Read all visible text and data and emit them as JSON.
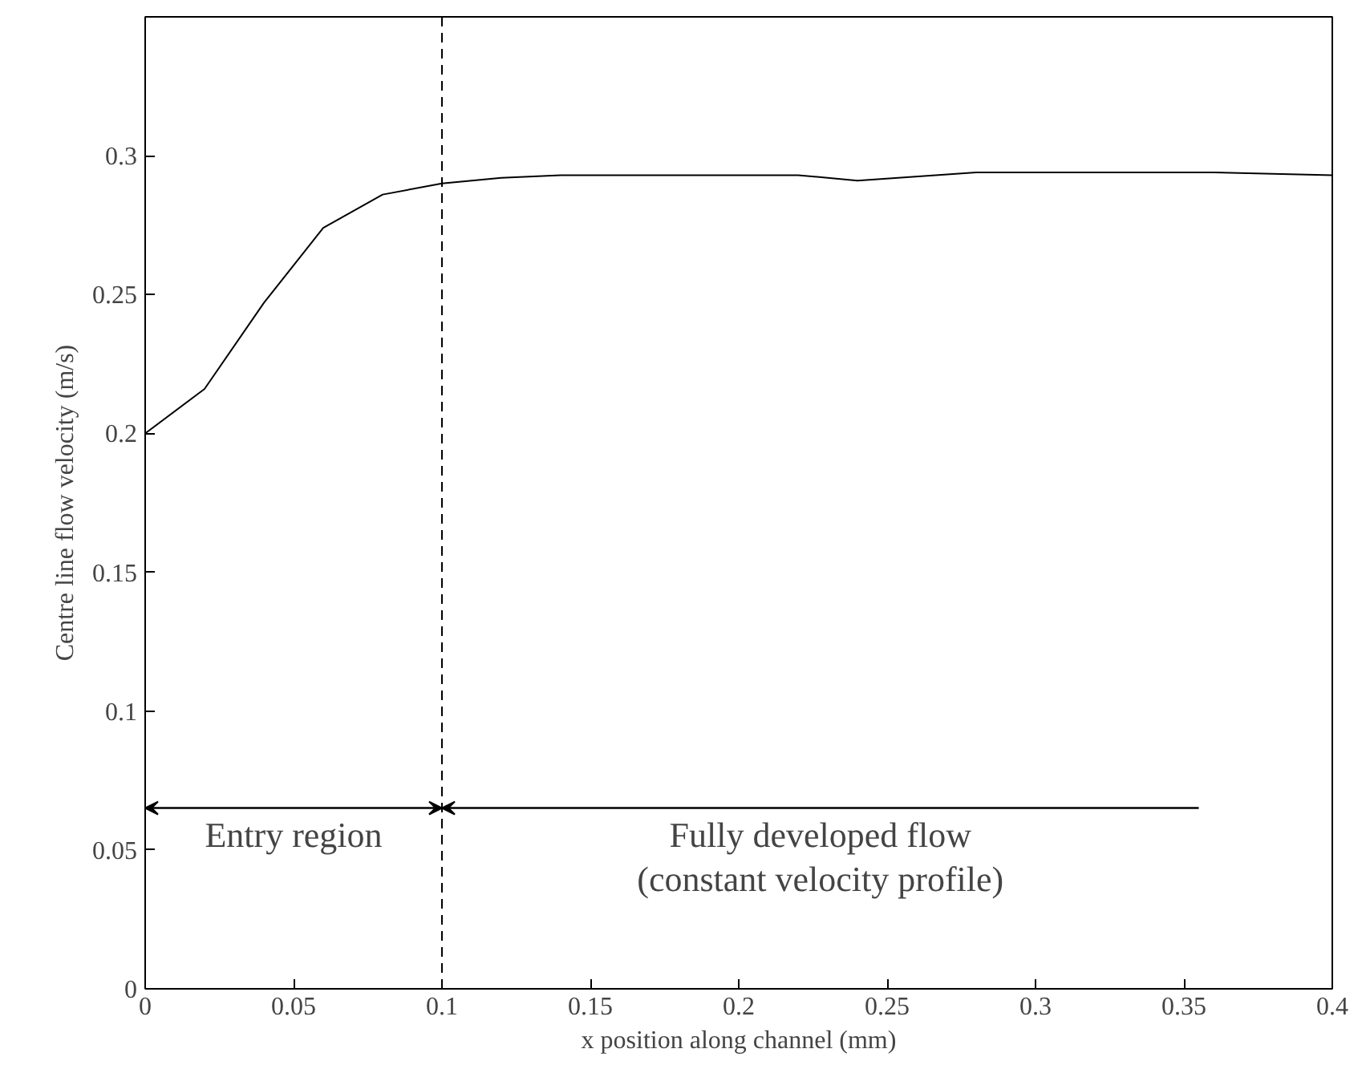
{
  "chart_data": {
    "type": "line",
    "xlabel": "x position along channel (mm)",
    "ylabel": "Centre line flow velocity (m/s)",
    "x": [
      0,
      0.02,
      0.04,
      0.06,
      0.08,
      0.1,
      0.12,
      0.14,
      0.22,
      0.24,
      0.28,
      0.36,
      0.4
    ],
    "series": [
      {
        "color": "#000000",
        "values": [
          0.2,
          0.216,
          0.247,
          0.274,
          0.286,
          0.29,
          0.292,
          0.293,
          0.293,
          0.291,
          0.294,
          0.294,
          0.293
        ]
      }
    ],
    "xlim": [
      0,
      0.4
    ],
    "ylim": [
      0,
      0.35
    ],
    "xticks": [
      0,
      0.05,
      0.1,
      0.15,
      0.2,
      0.25,
      0.3,
      0.35,
      0.4
    ],
    "yticks": [
      0,
      0.05,
      0.1,
      0.15,
      0.2,
      0.25,
      0.3
    ],
    "ref_lines": [
      {
        "axis": "x",
        "value": 0.1,
        "line_style": "dashed",
        "color": "#000000"
      }
    ],
    "annotations": [
      "Entry region",
      "Fully developed flow\n(constant velocity profile)"
    ],
    "grid": false,
    "marker": "none",
    "line_style": "solid"
  }
}
